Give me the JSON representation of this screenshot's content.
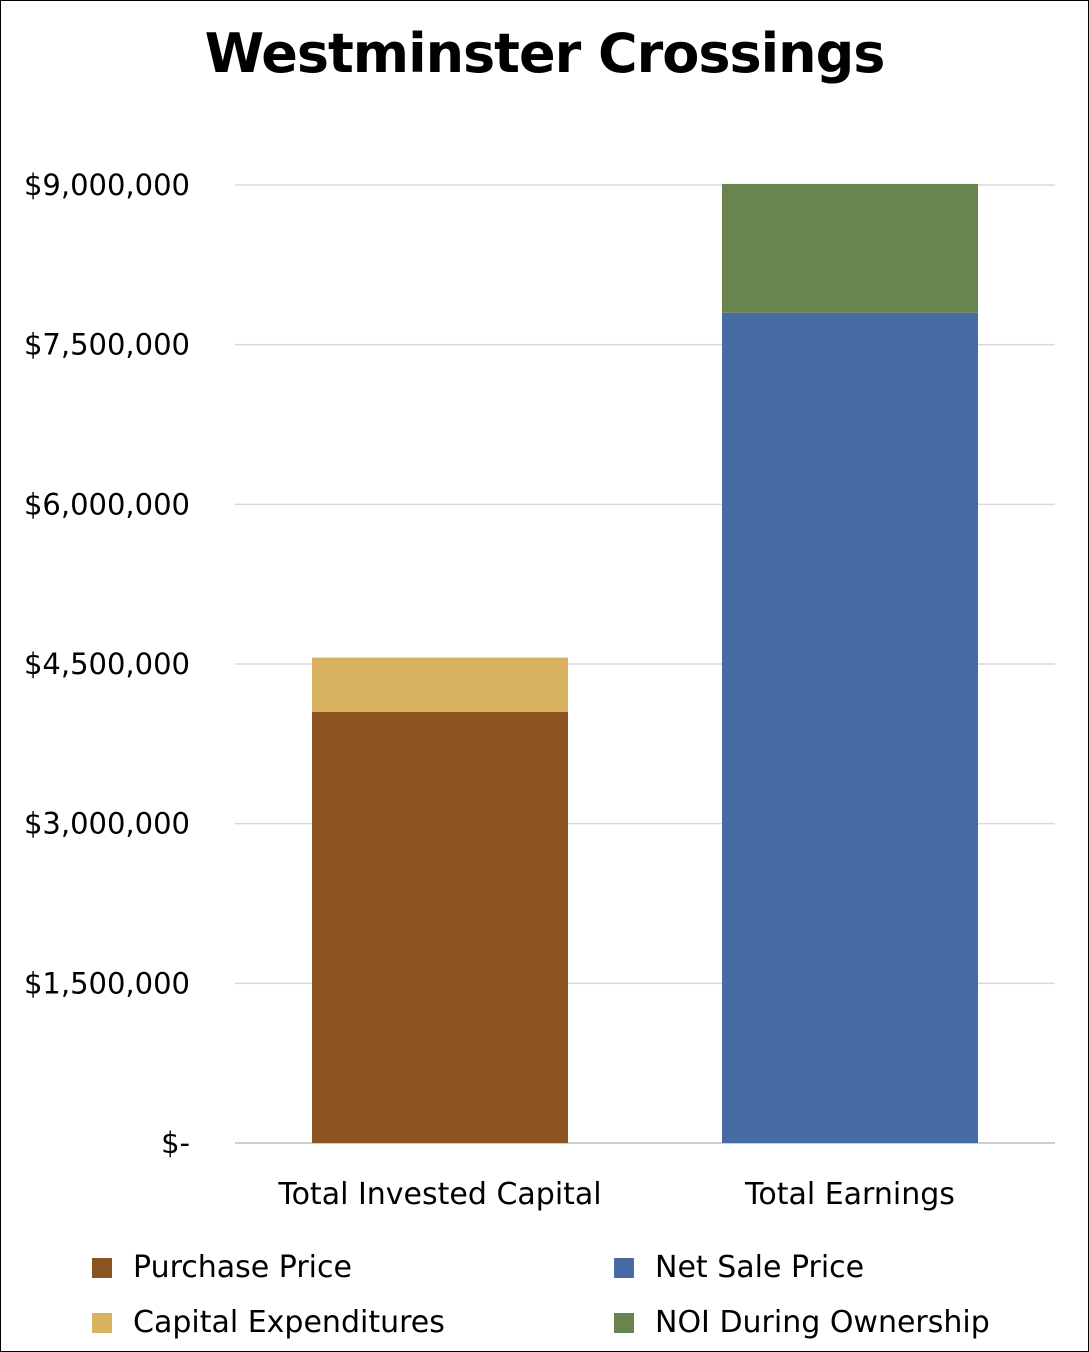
{
  "chart_data": {
    "type": "bar",
    "stacked": true,
    "title": "Westminster Crossings",
    "categories": [
      "Total Invested Capital",
      "Total Earnings"
    ],
    "series": [
      {
        "name": "Purchase Price",
        "color": "#8B531F",
        "values": [
          4050000,
          0
        ]
      },
      {
        "name": "Capital Expenditures",
        "color": "#D9B25F",
        "values": [
          510000,
          0
        ]
      },
      {
        "name": "Net Sale Price",
        "color": "#476BA4",
        "values": [
          0,
          7800000
        ]
      },
      {
        "name": "NOI During Ownership",
        "color": "#6A8450",
        "values": [
          0,
          1210000
        ]
      }
    ],
    "ylim": [
      0,
      9000000
    ],
    "yticks": [
      0,
      1500000,
      3000000,
      4500000,
      6000000,
      7500000,
      9000000
    ],
    "ytick_labels": [
      "$-",
      "$1,500,000",
      "$3,000,000",
      "$4,500,000",
      "$6,000,000",
      "$7,500,000",
      "$9,000,000"
    ],
    "grid": true,
    "legend_position": "bottom",
    "xlabel": "",
    "ylabel": ""
  }
}
